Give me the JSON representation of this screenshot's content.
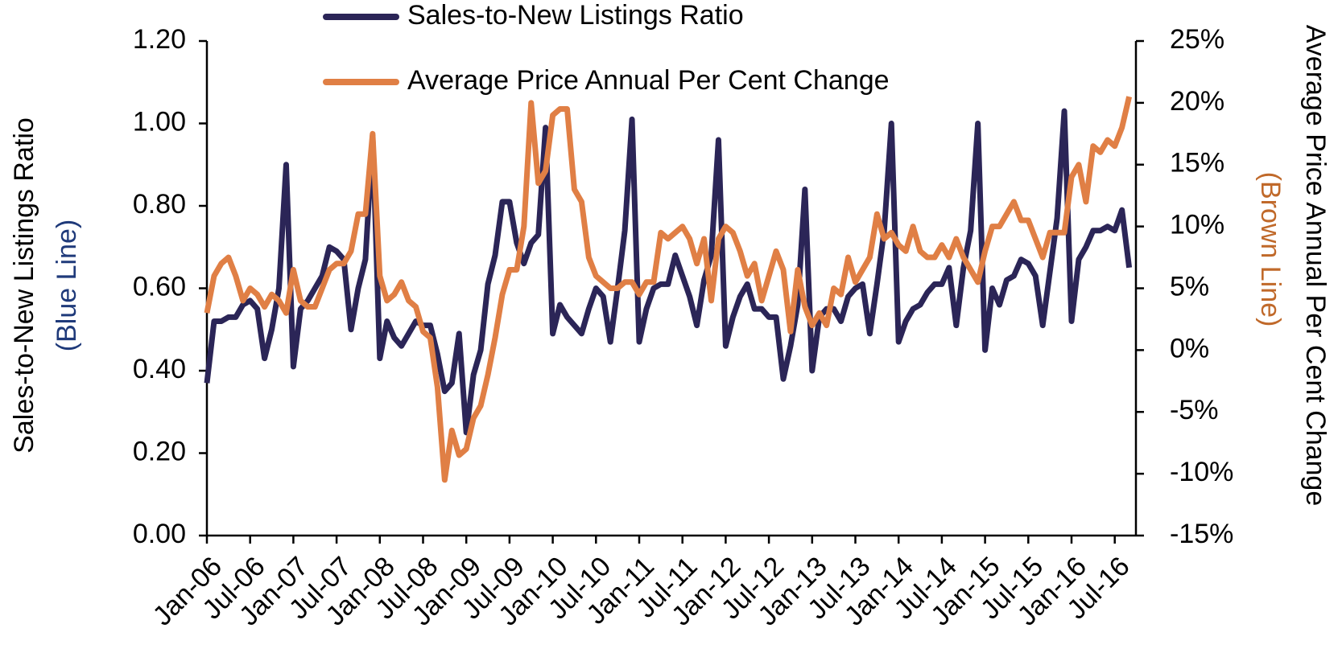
{
  "chart_data": {
    "type": "line",
    "y_label": "Sales-to-New Listings Ratio",
    "y_label_note": "(Blue Line)",
    "y2_label": "Average Price Annual Per Cent Change",
    "y2_label_note": "(Brown Line)",
    "categories": [
      "Jan-06",
      null,
      null,
      null,
      null,
      null,
      "Jul-06",
      null,
      null,
      null,
      null,
      null,
      "Jan-07",
      null,
      null,
      null,
      null,
      null,
      "Jul-07",
      null,
      null,
      null,
      null,
      null,
      "Jan-08",
      null,
      null,
      null,
      null,
      null,
      "Jul-08",
      null,
      null,
      null,
      null,
      null,
      "Jan-09",
      null,
      null,
      null,
      null,
      null,
      "Jul-09",
      null,
      null,
      null,
      null,
      null,
      "Jan-10",
      null,
      null,
      null,
      null,
      null,
      "Jul-10",
      null,
      null,
      null,
      null,
      null,
      "Jan-11",
      null,
      null,
      null,
      null,
      null,
      "Jul-11",
      null,
      null,
      null,
      null,
      null,
      "Jan-12",
      null,
      null,
      null,
      null,
      null,
      "Jul-12",
      null,
      null,
      null,
      null,
      null,
      "Jan-13",
      null,
      null,
      null,
      null,
      null,
      "Jul-13",
      null,
      null,
      null,
      null,
      null,
      "Jan-14",
      null,
      null,
      null,
      null,
      null,
      "Jul-14",
      null,
      null,
      null,
      null,
      null,
      "Jan-15",
      null,
      null,
      null,
      null,
      null,
      "Jul-15",
      null,
      null,
      null,
      null,
      null,
      "Jan-16",
      null,
      null,
      null,
      null,
      null,
      "Jul-16",
      null,
      null
    ],
    "series": [
      {
        "name": "Sales-to-New Listings Ratio",
        "color": "#2b2557",
        "values": [
          0.37,
          0.52,
          0.52,
          0.53,
          0.53,
          0.56,
          0.57,
          0.55,
          0.43,
          0.5,
          0.6,
          0.9,
          0.41,
          0.55,
          0.57,
          0.6,
          0.63,
          0.7,
          0.69,
          0.67,
          0.5,
          0.6,
          0.67,
          0.97,
          0.43,
          0.52,
          0.48,
          0.46,
          0.49,
          0.52,
          0.51,
          0.51,
          0.44,
          0.35,
          0.37,
          0.49,
          0.25,
          0.39,
          0.45,
          0.61,
          0.68,
          0.81,
          0.81,
          0.71,
          0.66,
          0.71,
          0.73,
          0.99,
          0.49,
          0.56,
          0.53,
          0.51,
          0.49,
          0.55,
          0.6,
          0.58,
          0.47,
          0.6,
          0.74,
          1.01,
          0.47,
          0.55,
          0.6,
          0.61,
          0.61,
          0.68,
          0.63,
          0.58,
          0.51,
          0.62,
          0.68,
          0.96,
          0.46,
          0.53,
          0.58,
          0.61,
          0.55,
          0.55,
          0.53,
          0.53,
          0.38,
          0.46,
          0.56,
          0.84,
          0.4,
          0.53,
          0.55,
          0.55,
          0.52,
          0.58,
          0.6,
          0.61,
          0.49,
          0.61,
          0.74,
          1.0,
          0.47,
          0.52,
          0.55,
          0.56,
          0.59,
          0.61,
          0.61,
          0.65,
          0.51,
          0.65,
          0.74,
          1.0,
          0.45,
          0.6,
          0.56,
          0.62,
          0.63,
          0.67,
          0.66,
          0.63,
          0.51,
          0.64,
          0.77,
          1.03,
          0.52,
          0.67,
          0.7,
          0.74,
          0.74,
          0.75,
          0.74,
          0.79,
          0.65
        ]
      },
      {
        "name": "Average Price Annual Per Cent Change",
        "color": "#e07f45",
        "axis": "y2",
        "values": [
          3,
          6,
          7,
          7.5,
          6,
          4,
          5,
          4.5,
          3.5,
          4.5,
          4,
          3,
          6.5,
          4,
          3.5,
          3.5,
          5,
          6.5,
          7,
          7,
          8,
          11,
          11,
          17.5,
          6,
          4,
          4.5,
          5.5,
          4,
          3.5,
          1.5,
          1,
          -3,
          -10.5,
          -6.5,
          -8.5,
          -8,
          -5.5,
          -4.5,
          -2,
          1,
          4.5,
          6.5,
          6.5,
          10,
          20,
          13.5,
          14.5,
          19,
          19.5,
          19.5,
          13,
          12,
          7.5,
          6,
          5.5,
          5,
          5,
          5.5,
          5.5,
          4.5,
          5.5,
          5.5,
          9.5,
          9,
          9.5,
          10,
          9,
          7,
          9,
          4,
          9,
          10,
          9.5,
          8,
          6,
          7,
          4,
          6,
          8,
          6.5,
          1.5,
          6.5,
          3.5,
          2,
          3,
          2,
          5,
          4.5,
          7.5,
          5.5,
          6.5,
          7.5,
          11,
          9,
          9.5,
          8.5,
          8,
          10,
          8,
          7.5,
          7.5,
          8.5,
          7.5,
          9,
          7.5,
          6.5,
          5.5,
          8,
          10,
          10,
          11,
          12,
          10.5,
          10.5,
          9,
          7.5,
          9.5,
          9.5,
          9.5,
          14,
          15,
          12,
          16.5,
          16,
          17,
          16.5,
          18,
          20.5
        ]
      }
    ],
    "ylim": [
      0,
      1.2
    ],
    "yticks": [
      {
        "value": 0,
        "label": "0.00"
      },
      {
        "value": 0.2,
        "label": "0.20"
      },
      {
        "value": 0.4,
        "label": "0.40"
      },
      {
        "value": 0.6,
        "label": "0.60"
      },
      {
        "value": 0.8,
        "label": "0.80"
      },
      {
        "value": 1.0,
        "label": "1.00"
      },
      {
        "value": 1.2,
        "label": "1.20"
      }
    ],
    "y2lim": [
      -15,
      25
    ],
    "y2ticks": [
      {
        "value": -15,
        "label": "-15%"
      },
      {
        "value": -10,
        "label": "-10%"
      },
      {
        "value": -5,
        "label": "-5%"
      },
      {
        "value": 0,
        "label": "0%"
      },
      {
        "value": 5,
        "label": "5%"
      },
      {
        "value": 10,
        "label": "10%"
      },
      {
        "value": 15,
        "label": "15%"
      },
      {
        "value": 20,
        "label": "20%"
      },
      {
        "value": 25,
        "label": "25%"
      }
    ],
    "grid": false
  }
}
